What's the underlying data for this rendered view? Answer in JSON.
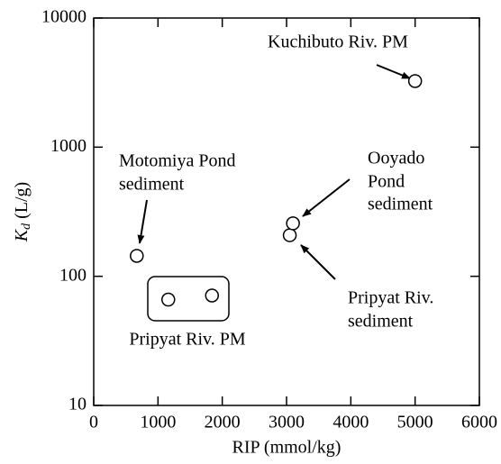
{
  "chart_data": {
    "type": "scatter",
    "ylabel_symbol": "K",
    "ylabel_subscript": "d",
    "ylabel_unit": "(L/g)",
    "xlabel": "RIP (mmol/kg)",
    "xlim": [
      0,
      6000
    ],
    "xticks": [
      0,
      1000,
      2000,
      3000,
      4000,
      5000,
      6000
    ],
    "ylim": [
      10,
      10000
    ],
    "yticks": [
      10,
      100,
      1000,
      10000
    ],
    "ylog": true,
    "series": [
      {
        "color": "#000000",
        "x": [
          670,
          1160,
          1840,
          3050,
          3100,
          5000
        ],
        "values": [
          144,
          66,
          71,
          208,
          257,
          3250
        ]
      }
    ],
    "annotations": {
      "kuchibuto": [
        "Kuchibuto Riv. PM"
      ],
      "ooyado": [
        "Ooyado",
        "Pond",
        "sediment"
      ],
      "motomiya": [
        "Motomiya Pond",
        "sediment"
      ],
      "pripyat_sediment": [
        "Pripyat Riv.",
        "sediment"
      ],
      "pripyat_pm": [
        "Pripyat Riv. PM"
      ]
    }
  }
}
